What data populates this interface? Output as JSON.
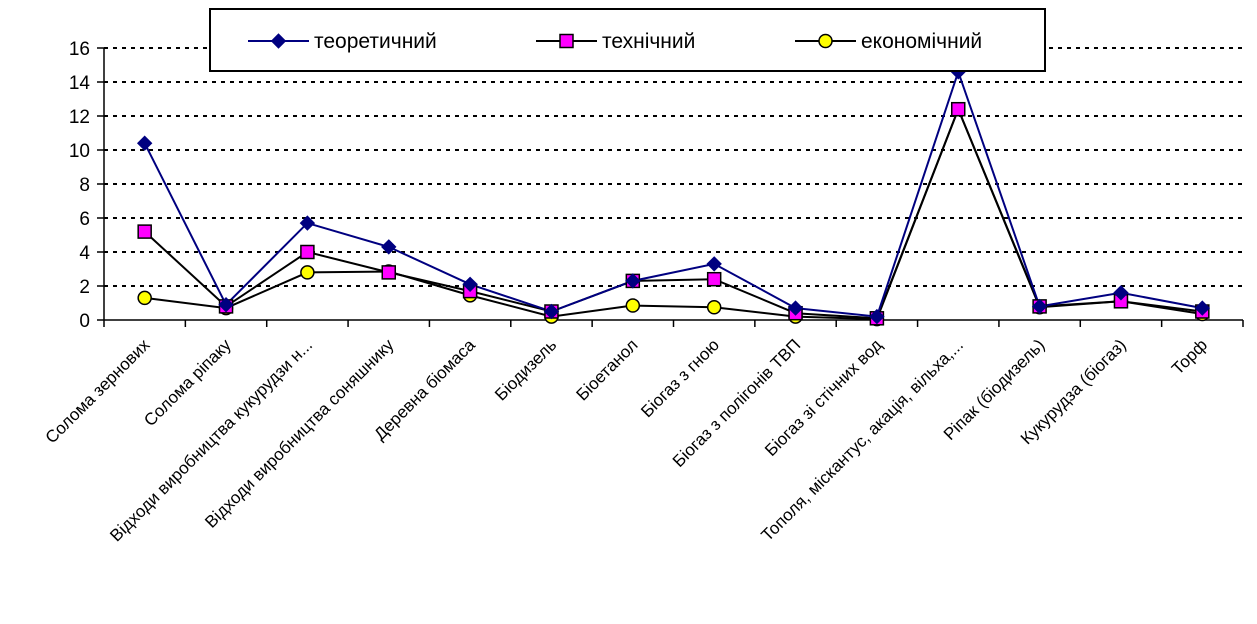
{
  "chart_data": {
    "type": "line",
    "title": "",
    "xlabel": "",
    "ylabel": "",
    "ylim": [
      0,
      16
    ],
    "yticks": [
      0,
      2,
      4,
      6,
      8,
      10,
      12,
      14,
      16
    ],
    "grid": true,
    "legend_position": "top",
    "categories": [
      "Солома зернових",
      "Солома ріпаку",
      "Відходи виробництва кукурудзи н...",
      "Відходи виробництва соняшнику",
      "Деревна біомаса",
      "Біодизель",
      "Біоетанол",
      "Біогаз з гною",
      "Біогаз з полігонів ТВП",
      "Біогаз зі стічних вод",
      "Тополя, міскантус, акація, вільха,...",
      "Ріпак (біодизель)",
      "Кукурудза (біогаз)",
      "Торф"
    ],
    "series": [
      {
        "name": "теоретичний",
        "color": "#000080",
        "marker": "diamond",
        "values": [
          10.4,
          0.9,
          5.7,
          4.3,
          2.1,
          0.5,
          2.3,
          3.3,
          0.7,
          0.2,
          14.6,
          0.8,
          1.6,
          0.7
        ]
      },
      {
        "name": "технічний",
        "color": "#000000",
        "marker": "square",
        "marker_fill": "#ff00ff",
        "values": [
          5.2,
          0.8,
          4.0,
          2.8,
          1.7,
          0.5,
          2.3,
          2.4,
          0.4,
          0.1,
          12.4,
          0.8,
          1.1,
          0.5
        ]
      },
      {
        "name": "економічний",
        "color": "#000000",
        "marker": "circle",
        "marker_fill": "#ffff00",
        "values": [
          1.3,
          0.7,
          2.8,
          2.85,
          1.45,
          0.2,
          0.85,
          0.75,
          0.2,
          0.05,
          12.4,
          0.75,
          1.1,
          0.35
        ]
      }
    ]
  }
}
